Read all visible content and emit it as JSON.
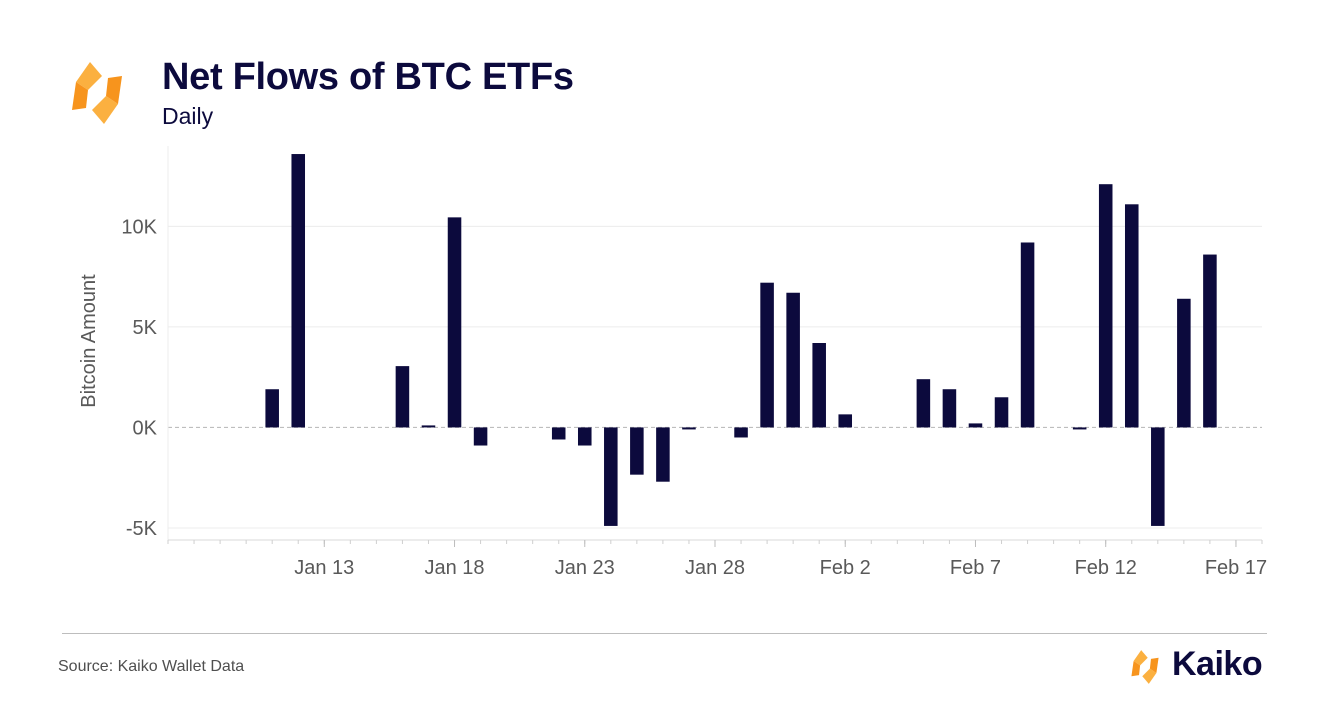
{
  "header": {
    "title": "Net Flows of BTC ETFs",
    "subtitle": "Daily"
  },
  "footer": {
    "source": "Source: Kaiko Wallet Data",
    "brand": "Kaiko"
  },
  "colors": {
    "bar": "#0c0a3d",
    "title": "#0c0a3d",
    "logo_orange": "#f7941d",
    "logo_yellow": "#fbb040",
    "grid": "#ececec",
    "zero_line": "#b5b5b5",
    "axis_text": "#595959"
  },
  "chart_data": {
    "type": "bar",
    "ylabel": "Bitcoin Amount",
    "ylim": [
      -5600,
      14000
    ],
    "yticks": [
      -5000,
      0,
      5000,
      10000
    ],
    "ytick_labels": [
      "-5K",
      "0K",
      "5K",
      "10K"
    ],
    "x_range": [
      "2024-01-07",
      "2024-02-18"
    ],
    "xticks": [
      "2024-01-13",
      "2024-01-18",
      "2024-01-23",
      "2024-01-28",
      "2024-02-02",
      "2024-02-07",
      "2024-02-12",
      "2024-02-17"
    ],
    "xtick_labels": [
      "Jan 13",
      "Jan 18",
      "Jan 23",
      "Jan 28",
      "Feb 2",
      "Feb 7",
      "Feb 12",
      "Feb 17"
    ],
    "grid": true,
    "dates": [
      "2024-01-11",
      "2024-01-12",
      "2024-01-16",
      "2024-01-17",
      "2024-01-18",
      "2024-01-19",
      "2024-01-22",
      "2024-01-23",
      "2024-01-24",
      "2024-01-25",
      "2024-01-26",
      "2024-01-27",
      "2024-01-29",
      "2024-01-30",
      "2024-01-31",
      "2024-02-01",
      "2024-02-02",
      "2024-02-05",
      "2024-02-06",
      "2024-02-07",
      "2024-02-08",
      "2024-02-09",
      "2024-02-11",
      "2024-02-12",
      "2024-02-13",
      "2024-02-14",
      "2024-02-15",
      "2024-02-16"
    ],
    "values": [
      1900,
      13600,
      3050,
      100,
      10450,
      -900,
      -600,
      -900,
      -4900,
      -2350,
      -2700,
      -100,
      -500,
      7200,
      6700,
      4200,
      650,
      2400,
      1900,
      200,
      1500,
      9200,
      -100,
      12100,
      11100,
      -4900,
      6400,
      8600
    ]
  }
}
